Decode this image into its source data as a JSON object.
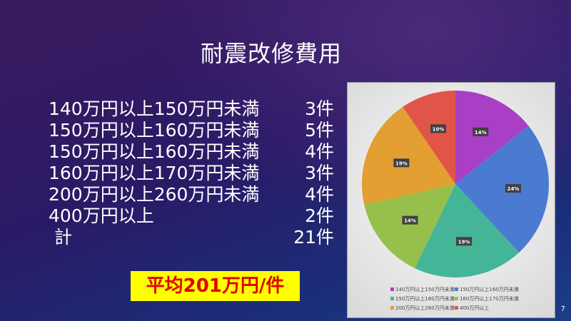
{
  "title": "耐震改修費用",
  "rows": [
    {
      "label": "140万円以上150万円未満",
      "count": "3件"
    },
    {
      "label": "150万円以上160万円未満",
      "count": "5件"
    },
    {
      "label": "150万円以上160万円未満",
      "count": "4件"
    },
    {
      "label": "160万円以上170万円未満",
      "count": "3件"
    },
    {
      "label": "200万円以上260万円未満",
      "count": "4件"
    },
    {
      "label": "400万円以上",
      "count": "2件"
    },
    {
      "label": " 計",
      "count": "21件"
    }
  ],
  "average": "平均201万円/件",
  "page_number": "7",
  "chart_data": {
    "type": "pie",
    "categories": [
      "140万円以上150万円未満",
      "150万円以上160万円未満",
      "150万円以上160万円未満",
      "160万円以上170万円未満",
      "200万円以上260万円未満",
      "400万円以上"
    ],
    "values": [
      3,
      5,
      4,
      3,
      4,
      2
    ],
    "labels": [
      "14%",
      "24%",
      "19%",
      "14%",
      "19%",
      "10%"
    ],
    "colors": [
      "#a83fc4",
      "#4a7bd1",
      "#45b597",
      "#97bf4c",
      "#e39f32",
      "#e05548"
    ],
    "legend": "bottom"
  }
}
